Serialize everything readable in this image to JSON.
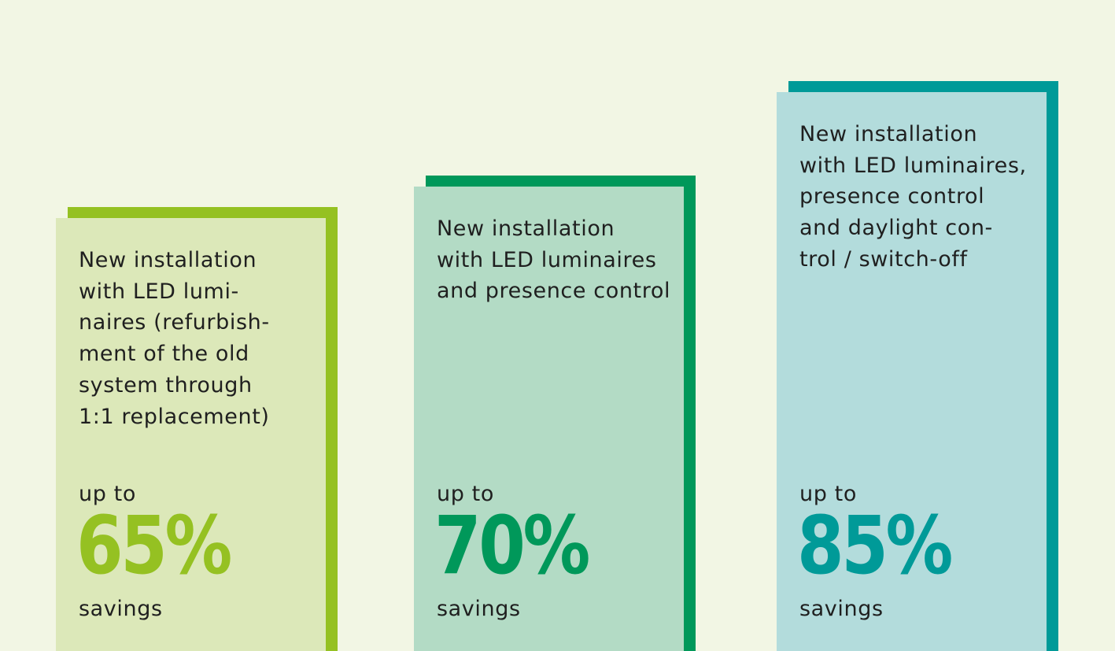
{
  "chart_data": {
    "type": "bar",
    "categories": [
      "New installation\nwith LED lumi-\nnaires (refurbish-\nment of the old\nsystem through\n1:1 replacement)",
      "New installation\nwith LED luminaires\nand presence control",
      "New installation\nwith LED luminaires,\npresence control\nand daylight con-\ntrol / switch-off"
    ],
    "values": [
      65,
      70,
      85
    ],
    "value_labels": [
      "65%",
      "70%",
      "85%"
    ],
    "prefix_label": "up to",
    "suffix_label": "savings",
    "colors": {
      "accent": [
        "#95c122",
        "#00985a",
        "#009a98"
      ],
      "fill": [
        "#dce8b9",
        "#b3dbc5",
        "#b3dcdc"
      ]
    },
    "title": "",
    "xlabel": "",
    "ylabel": "",
    "grid": false
  }
}
